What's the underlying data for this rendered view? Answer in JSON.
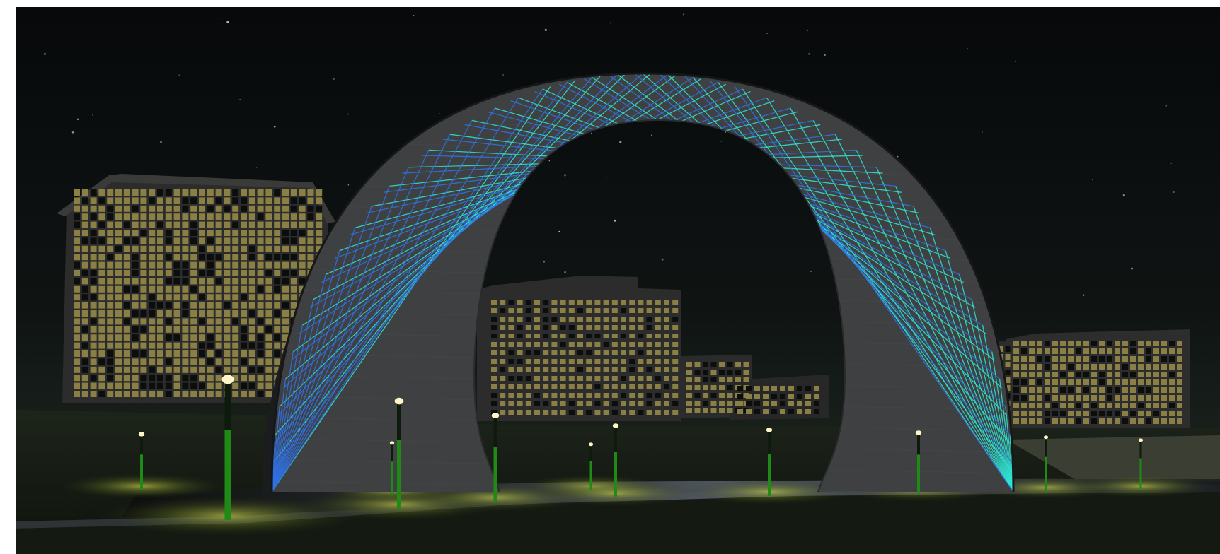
{
  "scene": {
    "subject": "lattice-arch",
    "time_of_day": "night",
    "counts": {
      "streetlamps": 11,
      "buildings": 6
    }
  },
  "colors": {
    "sky_top": "#07090b",
    "sky_bottom": "#1f2721",
    "ground": "#141a12",
    "arch_face": "#3f4042",
    "arch_edge": "#1b1c1d",
    "lattice_cyan": "#2fe6d4",
    "lattice_blue": "#2f73e6",
    "window_lit": "#8a7f45",
    "window_dark": "#0c0d0d",
    "building_body": "#2b2c2b",
    "lamp_pole": "#1f8a16",
    "lamp_glow": "#fff6c8"
  }
}
